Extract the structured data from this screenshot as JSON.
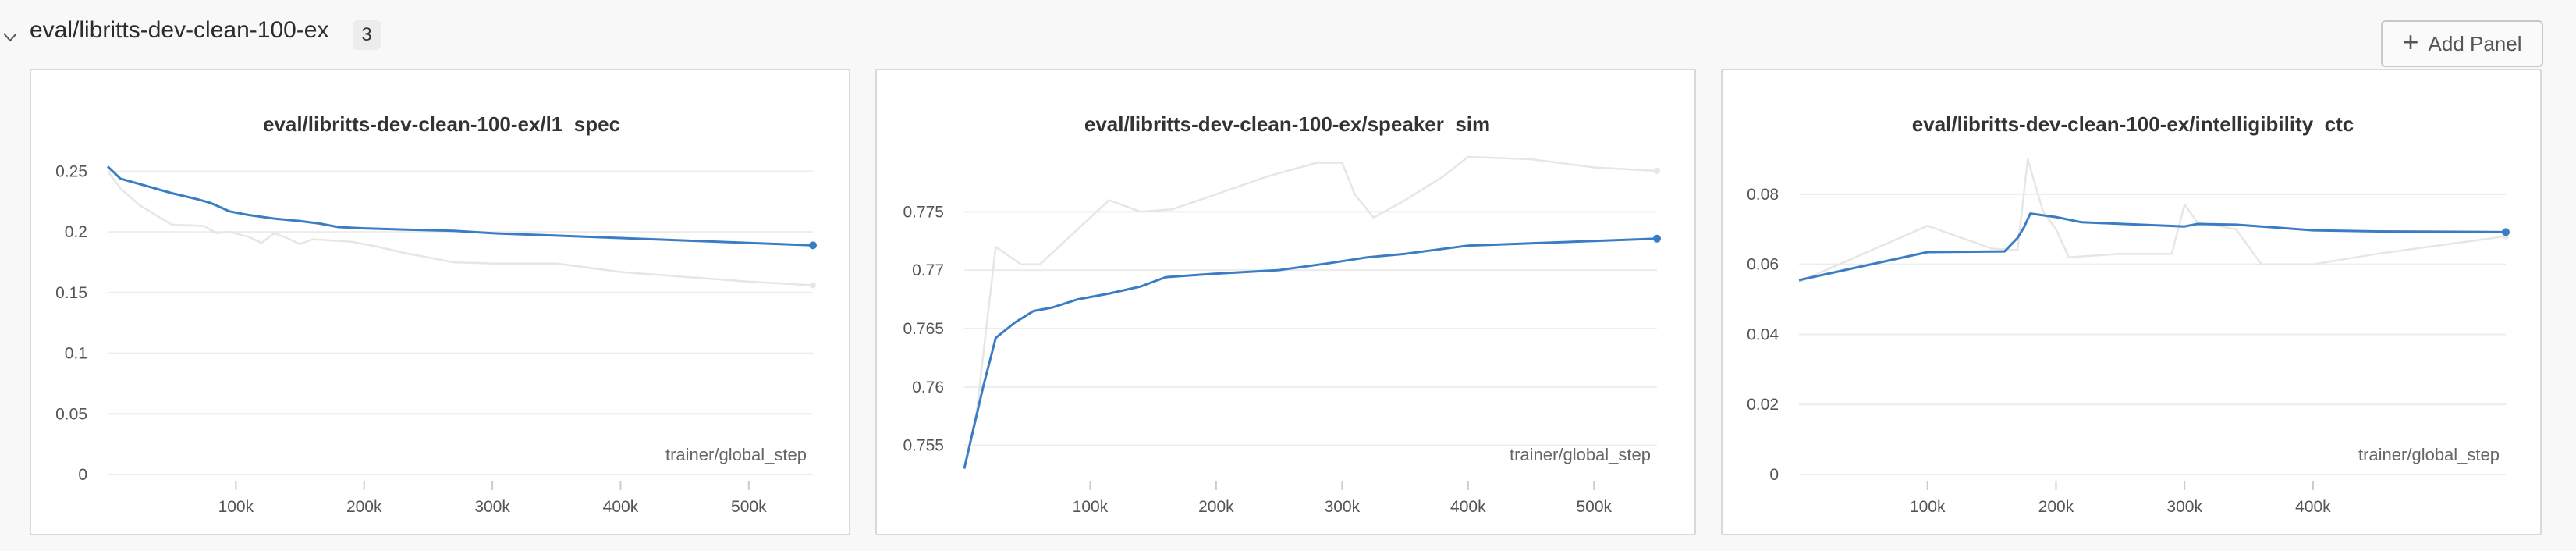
{
  "section": {
    "title": "eval/libritts-dev-clean-100-ex",
    "count": "3",
    "add_panel_label": "Add Panel"
  },
  "colors": {
    "main_line": "#3b7dc4",
    "smoothed_line": "#e6e6e6",
    "grid": "#ececec"
  },
  "chart_data": [
    {
      "type": "line",
      "title": "eval/libritts-dev-clean-100-ex/l1_spec",
      "xlabel": "trainer/global_step",
      "xlim": [
        0,
        550000
      ],
      "ylim": [
        0,
        0.26
      ],
      "xticks": [
        100000,
        200000,
        300000,
        400000,
        500000
      ],
      "xtick_labels": [
        "100k",
        "200k",
        "300k",
        "400k",
        "500k"
      ],
      "yticks": [
        0,
        0.05,
        0.1,
        0.15,
        0.2,
        0.25
      ],
      "ytick_labels": [
        "0",
        "0.05",
        "0.1",
        "0.15",
        "0.2",
        "0.25"
      ],
      "series": [
        {
          "style": "faint",
          "x": [
            0,
            10000,
            25000,
            50000,
            75000,
            85000,
            95000,
            110000,
            120000,
            130000,
            140000,
            150000,
            160000,
            175000,
            190000,
            210000,
            230000,
            270000,
            300000,
            350000,
            400000,
            450000,
            500000,
            550000
          ],
          "y": [
            0.25,
            0.236,
            0.222,
            0.206,
            0.205,
            0.199,
            0.2,
            0.196,
            0.191,
            0.199,
            0.195,
            0.19,
            0.194,
            0.193,
            0.192,
            0.188,
            0.183,
            0.175,
            0.174,
            0.174,
            0.167,
            0.163,
            0.159,
            0.156
          ]
        },
        {
          "style": "main",
          "x": [
            0,
            10000,
            30000,
            50000,
            70000,
            80000,
            95000,
            110000,
            130000,
            150000,
            165000,
            180000,
            200000,
            230000,
            270000,
            300000,
            350000,
            400000,
            450000,
            500000,
            550000
          ],
          "y": [
            0.254,
            0.244,
            0.238,
            0.232,
            0.227,
            0.224,
            0.217,
            0.214,
            0.211,
            0.209,
            0.207,
            0.204,
            0.203,
            0.202,
            0.201,
            0.199,
            0.197,
            0.195,
            0.193,
            0.191,
            0.189
          ]
        }
      ]
    },
    {
      "type": "line",
      "title": "eval/libritts-dev-clean-100-ex/speaker_sim",
      "xlabel": "trainer/global_step",
      "xlim": [
        0,
        550000
      ],
      "ylim": [
        0.7525,
        0.7795
      ],
      "xticks": [
        100000,
        200000,
        300000,
        400000,
        500000
      ],
      "xtick_labels": [
        "100k",
        "200k",
        "300k",
        "400k",
        "500k"
      ],
      "yticks": [
        0.755,
        0.76,
        0.765,
        0.77,
        0.775
      ],
      "ytick_labels": [
        "0.755",
        "0.76",
        "0.765",
        "0.77",
        "0.775"
      ],
      "series": [
        {
          "style": "faint",
          "x": [
            0,
            10000,
            25000,
            45000,
            60000,
            90000,
            115000,
            140000,
            165000,
            200000,
            240000,
            280000,
            300000,
            310000,
            325000,
            350000,
            380000,
            400000,
            450000,
            500000,
            550000
          ],
          "y": [
            0.753,
            0.758,
            0.772,
            0.7705,
            0.7705,
            0.7735,
            0.776,
            0.775,
            0.7752,
            0.7765,
            0.778,
            0.7792,
            0.7792,
            0.7765,
            0.7745,
            0.776,
            0.778,
            0.7797,
            0.7795,
            0.7788,
            0.7785
          ]
        },
        {
          "style": "main",
          "x": [
            0,
            15000,
            25000,
            40000,
            55000,
            70000,
            90000,
            115000,
            140000,
            160000,
            200000,
            250000,
            290000,
            320000,
            350000,
            400000,
            450000,
            500000,
            550000
          ],
          "y": [
            0.753,
            0.76,
            0.7642,
            0.7655,
            0.7665,
            0.7668,
            0.7675,
            0.768,
            0.7686,
            0.7694,
            0.7697,
            0.77,
            0.7706,
            0.7711,
            0.7714,
            0.7721,
            0.7723,
            0.7725,
            0.7727
          ]
        }
      ]
    },
    {
      "type": "line",
      "title": "eval/libritts-dev-clean-100-ex/intelligibility_ctc",
      "xlabel": "trainer/global_step",
      "xlim": [
        0,
        550000
      ],
      "ylim": [
        0,
        0.09
      ],
      "xticks": [
        100000,
        200000,
        300000,
        400000
      ],
      "xtick_labels": [
        "100k",
        "200k",
        "300k",
        "400k"
      ],
      "yticks": [
        0,
        0.02,
        0.04,
        0.06,
        0.08
      ],
      "ytick_labels": [
        "0",
        "0.02",
        "0.04",
        "0.06",
        "0.08"
      ],
      "series": [
        {
          "style": "faint",
          "x": [
            0,
            50000,
            100000,
            150000,
            170000,
            178000,
            190000,
            200000,
            210000,
            250000,
            290000,
            300000,
            310000,
            340000,
            360000,
            400000,
            450000,
            550000
          ],
          "y": [
            0.055,
            0.063,
            0.071,
            0.0645,
            0.064,
            0.09,
            0.075,
            0.07,
            0.062,
            0.063,
            0.063,
            0.077,
            0.072,
            0.07,
            0.06,
            0.06,
            0.063,
            0.068
          ]
        },
        {
          "style": "main",
          "x": [
            0,
            50000,
            100000,
            160000,
            170000,
            175000,
            180000,
            200000,
            220000,
            260000,
            300000,
            310000,
            340000,
            360000,
            400000,
            450000,
            500000,
            550000
          ],
          "y": [
            0.0555,
            0.0595,
            0.0635,
            0.0637,
            0.0675,
            0.0705,
            0.0745,
            0.0735,
            0.072,
            0.0714,
            0.0708,
            0.0715,
            0.0713,
            0.0708,
            0.0697,
            0.0694,
            0.0693,
            0.0692
          ]
        }
      ]
    }
  ]
}
